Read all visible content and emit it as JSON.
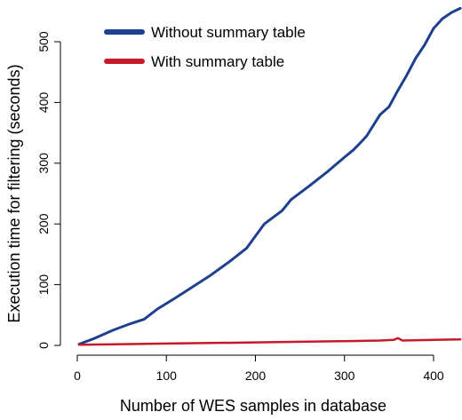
{
  "chart_data": {
    "type": "line",
    "title": "",
    "xlabel": "Number of WES samples in database",
    "ylabel": "Execution time for filtering (seconds)",
    "xlim": [
      0,
      430
    ],
    "ylim": [
      0,
      560
    ],
    "x_ticks": [
      0,
      100,
      200,
      300,
      400
    ],
    "y_ticks": [
      0,
      100,
      200,
      300,
      400,
      500
    ],
    "x_tick_labels": [
      "0",
      "100",
      "200",
      "300",
      "400"
    ],
    "y_tick_labels": [
      "0",
      "100",
      "200",
      "300",
      "400",
      "500"
    ],
    "grid": false,
    "legend_position": "top-left",
    "series": [
      {
        "name": "Without summary table",
        "color": "#1f3f8f",
        "x": [
          2,
          20,
          40,
          60,
          75,
          90,
          110,
          130,
          150,
          170,
          190,
          200,
          210,
          230,
          240,
          260,
          280,
          300,
          310,
          320,
          325,
          340,
          350,
          360,
          370,
          380,
          390,
          400,
          410,
          420,
          430
        ],
        "y": [
          2,
          12,
          25,
          36,
          43,
          60,
          78,
          97,
          116,
          137,
          160,
          180,
          200,
          222,
          240,
          262,
          285,
          310,
          322,
          337,
          345,
          380,
          393,
          420,
          445,
          473,
          495,
          522,
          538,
          548,
          555
        ]
      },
      {
        "name": "With summary table",
        "color": "#c61a2a",
        "x": [
          2,
          50,
          100,
          150,
          200,
          250,
          300,
          340,
          355,
          360,
          365,
          400,
          430
        ],
        "y": [
          1,
          2,
          3,
          4,
          5,
          6,
          7,
          8,
          9,
          12,
          8,
          9,
          10
        ]
      }
    ]
  }
}
